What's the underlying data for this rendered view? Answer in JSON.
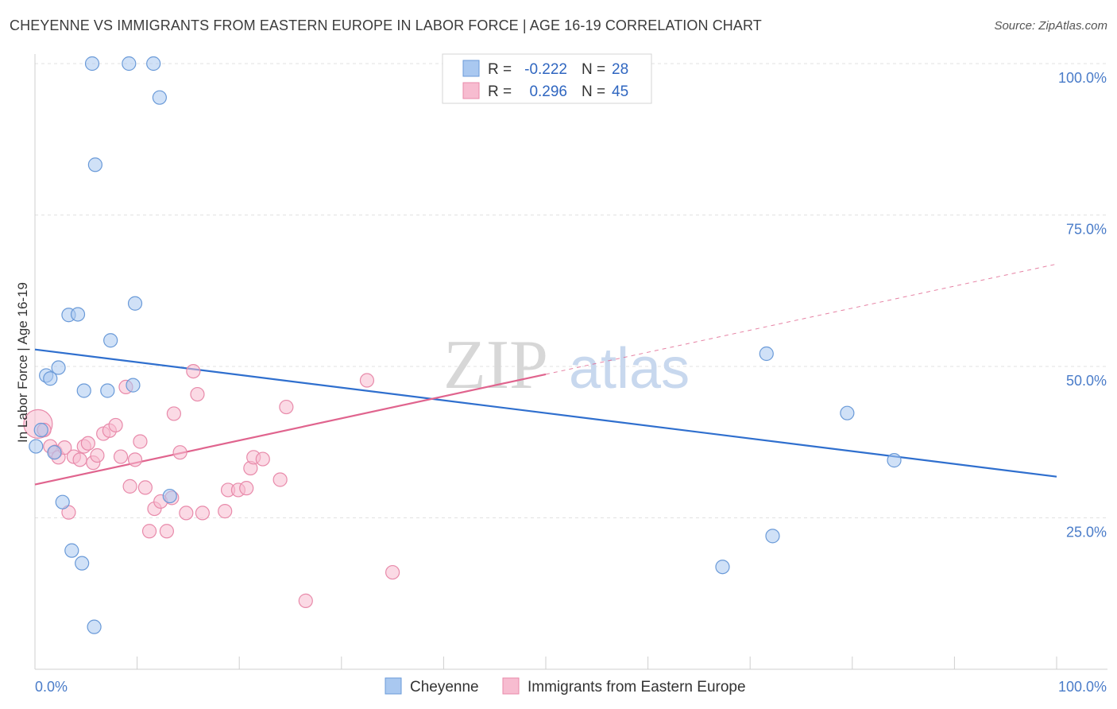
{
  "header": {
    "title": "CHEYENNE VS IMMIGRANTS FROM EASTERN EUROPE IN LABOR FORCE | AGE 16-19 CORRELATION CHART",
    "source": "Source: ZipAtlas.com"
  },
  "watermark": {
    "zip": "ZIP",
    "atlas": "atlas"
  },
  "chart_data": {
    "type": "scatter",
    "title": "CHEYENNE VS IMMIGRANTS FROM EASTERN EUROPE IN LABOR FORCE | AGE 16-19 CORRELATION CHART",
    "ylabel": "In Labor Force | Age 16-19",
    "xlabel": "",
    "xlim": [
      0,
      100
    ],
    "ylim": [
      0,
      100
    ],
    "x_tick_labels": [
      "0.0%",
      "100.0%"
    ],
    "y_ticks": [
      25,
      50,
      75,
      100
    ],
    "y_tick_labels": [
      "25.0%",
      "50.0%",
      "75.0%",
      "100.0%"
    ],
    "legend": {
      "r_label": "R =",
      "n_label": "N =",
      "entries": [
        {
          "r": "-0.222",
          "n": "28"
        },
        {
          "r": "0.296",
          "n": "45"
        }
      ]
    },
    "series": [
      {
        "name": "Cheyenne",
        "color": "#a9c8f0",
        "edge": "#6a9ad8",
        "line_color": "#2f6fce",
        "trend": {
          "x": [
            0,
            100
          ],
          "y": [
            52.8,
            31.8
          ]
        },
        "points": [
          [
            0.1,
            36.8
          ],
          [
            0.6,
            39.5
          ],
          [
            1.1,
            48.5
          ],
          [
            1.5,
            48.0
          ],
          [
            1.9,
            35.8
          ],
          [
            2.3,
            49.8
          ],
          [
            2.7,
            27.6
          ],
          [
            3.3,
            58.5
          ],
          [
            3.6,
            19.6
          ],
          [
            4.2,
            58.6
          ],
          [
            4.6,
            17.5
          ],
          [
            4.8,
            46.0
          ],
          [
            5.6,
            100.0
          ],
          [
            5.8,
            7.0
          ],
          [
            5.9,
            83.3
          ],
          [
            7.1,
            46.0
          ],
          [
            7.4,
            54.3
          ],
          [
            9.2,
            100.0
          ],
          [
            9.6,
            46.9
          ],
          [
            9.8,
            60.4
          ],
          [
            11.6,
            100.0
          ],
          [
            12.2,
            94.4
          ],
          [
            13.2,
            28.6
          ],
          [
            67.3,
            16.9
          ],
          [
            71.6,
            52.1
          ],
          [
            72.2,
            22.0
          ],
          [
            79.5,
            42.3
          ],
          [
            84.1,
            34.5
          ]
        ]
      },
      {
        "name": "Immigrants from Eastern Europe",
        "color": "#f7bcd0",
        "edge": "#e88aaa",
        "line_color": "#e0648e",
        "trend": {
          "x": [
            0,
            50
          ],
          "y": [
            30.5,
            48.7
          ]
        },
        "trend_dashed": {
          "x": [
            50,
            100
          ],
          "y": [
            48.7,
            66.9
          ]
        },
        "points": [
          [
            0.3,
            40.5
          ],
          [
            0.9,
            39.5
          ],
          [
            1.5,
            36.8
          ],
          [
            2.0,
            35.9
          ],
          [
            2.3,
            35.0
          ],
          [
            2.9,
            36.6
          ],
          [
            3.3,
            25.9
          ],
          [
            3.8,
            35.1
          ],
          [
            4.4,
            34.6
          ],
          [
            4.8,
            36.8
          ],
          [
            5.2,
            37.3
          ],
          [
            5.7,
            34.1
          ],
          [
            6.1,
            35.3
          ],
          [
            6.7,
            38.9
          ],
          [
            7.3,
            39.4
          ],
          [
            7.9,
            40.3
          ],
          [
            8.4,
            35.1
          ],
          [
            8.9,
            46.6
          ],
          [
            9.3,
            30.2
          ],
          [
            9.8,
            34.6
          ],
          [
            10.3,
            37.6
          ],
          [
            10.8,
            30.0
          ],
          [
            11.2,
            22.8
          ],
          [
            11.7,
            26.5
          ],
          [
            12.3,
            27.7
          ],
          [
            12.9,
            22.8
          ],
          [
            13.4,
            28.3
          ],
          [
            13.6,
            42.2
          ],
          [
            14.2,
            35.8
          ],
          [
            14.8,
            25.8
          ],
          [
            15.5,
            49.2
          ],
          [
            15.9,
            45.4
          ],
          [
            16.4,
            25.8
          ],
          [
            18.6,
            26.1
          ],
          [
            18.9,
            29.6
          ],
          [
            19.9,
            29.6
          ],
          [
            20.7,
            29.9
          ],
          [
            21.1,
            33.2
          ],
          [
            21.4,
            35.0
          ],
          [
            22.3,
            34.7
          ],
          [
            24.0,
            31.3
          ],
          [
            24.6,
            43.3
          ],
          [
            26.5,
            11.3
          ],
          [
            32.5,
            47.7
          ],
          [
            35.0,
            16.0
          ]
        ]
      }
    ]
  }
}
